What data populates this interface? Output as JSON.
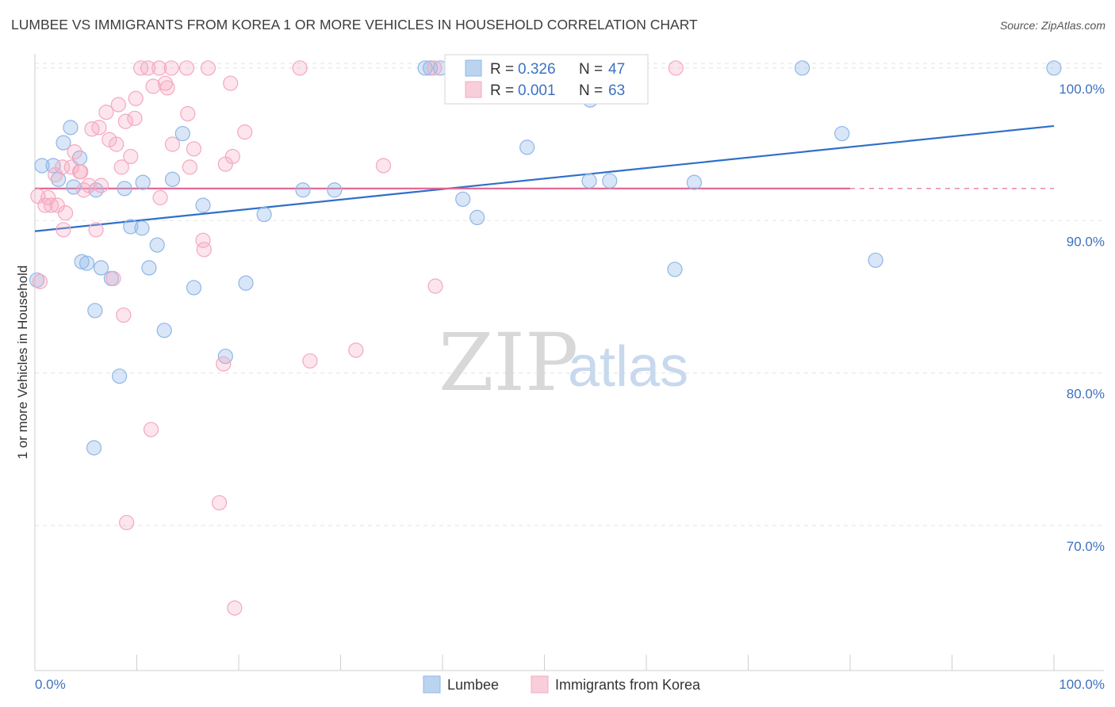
{
  "title": "LUMBEE VS IMMIGRANTS FROM KOREA 1 OR MORE VEHICLES IN HOUSEHOLD CORRELATION CHART",
  "source": "Source: ZipAtlas.com",
  "watermark": {
    "zip": "ZIP",
    "atlas": "atlas"
  },
  "legend_top": {
    "r_label": "R =",
    "n_label": "N =",
    "series": [
      {
        "r": "0.326",
        "n": "47"
      },
      {
        "r": "0.001",
        "n": "63"
      }
    ]
  },
  "chart_data": {
    "type": "scatter",
    "title": "LUMBEE VS IMMIGRANTS FROM KOREA 1 OR MORE VEHICLES IN HOUSEHOLD CORRELATION CHART",
    "xlabel": "",
    "ylabel": "1 or more Vehicles in Household",
    "xlim": [
      0,
      100
    ],
    "ylim": [
      60.5,
      101.6
    ],
    "x_tick_labels": [
      "0.0%",
      "100.0%"
    ],
    "y_ticks": [
      100,
      90,
      80,
      70
    ],
    "y_tick_labels": [
      "100.0%",
      "90.0%",
      "80.0%",
      "70.0%"
    ],
    "grid": true,
    "legend": "bottom-center",
    "series": [
      {
        "name": "Lumbee",
        "color": "#8fb7e8",
        "line_color": "#2f6fc9",
        "r": 0.326,
        "n": 47,
        "trend": {
          "x": [
            0,
            100
          ],
          "y": [
            89.3,
            96.2
          ]
        },
        "points": [
          [
            0.2,
            86.1
          ],
          [
            0.7,
            93.6
          ],
          [
            1.8,
            93.6
          ],
          [
            2.3,
            92.7
          ],
          [
            2.8,
            95.1
          ],
          [
            3.5,
            96.1
          ],
          [
            3.8,
            92.2
          ],
          [
            4.4,
            94.1
          ],
          [
            4.6,
            87.3
          ],
          [
            5.1,
            87.2
          ],
          [
            5.9,
            84.1
          ],
          [
            6.5,
            86.9
          ],
          [
            7.5,
            86.2
          ],
          [
            6.0,
            92.0
          ],
          [
            8.3,
            79.8
          ],
          [
            8.8,
            92.1
          ],
          [
            9.4,
            89.6
          ],
          [
            10.5,
            89.5
          ],
          [
            10.6,
            92.5
          ],
          [
            11.2,
            86.9
          ],
          [
            12.0,
            88.4
          ],
          [
            12.7,
            82.8
          ],
          [
            13.5,
            92.7
          ],
          [
            14.5,
            95.7
          ],
          [
            15.6,
            85.6
          ],
          [
            16.5,
            91.0
          ],
          [
            18.7,
            81.1
          ],
          [
            20.7,
            85.9
          ],
          [
            22.5,
            90.4
          ],
          [
            26.3,
            92.0
          ],
          [
            29.4,
            92.0
          ],
          [
            38.3,
            100.0
          ],
          [
            38.8,
            100.0
          ],
          [
            39.8,
            100.0
          ],
          [
            42.0,
            91.4
          ],
          [
            43.4,
            90.2
          ],
          [
            48.3,
            94.8
          ],
          [
            54.4,
            92.6
          ],
          [
            54.5,
            97.9
          ],
          [
            56.4,
            92.6
          ],
          [
            62.8,
            86.8
          ],
          [
            64.7,
            92.5
          ],
          [
            75.3,
            100.0
          ],
          [
            79.2,
            95.7
          ],
          [
            82.5,
            87.4
          ],
          [
            100.0,
            100.0
          ],
          [
            5.8,
            75.1
          ]
        ]
      },
      {
        "name": "Immigrants from Korea",
        "color": "#f4a8c0",
        "line_color": "#e2628f",
        "r": 0.001,
        "n": 63,
        "trend": {
          "x": [
            0,
            80
          ],
          "y": [
            92.1,
            92.1
          ]
        },
        "points": [
          [
            0.3,
            91.6
          ],
          [
            0.5,
            86.0
          ],
          [
            1.0,
            91.0
          ],
          [
            1.3,
            91.5
          ],
          [
            1.6,
            91.0
          ],
          [
            2.0,
            93.0
          ],
          [
            2.2,
            91.0
          ],
          [
            2.7,
            93.5
          ],
          [
            2.8,
            89.4
          ],
          [
            3.0,
            90.5
          ],
          [
            3.6,
            93.5
          ],
          [
            3.9,
            94.5
          ],
          [
            4.4,
            93.2
          ],
          [
            4.5,
            93.2
          ],
          [
            4.8,
            92.0
          ],
          [
            5.3,
            92.3
          ],
          [
            5.6,
            96.0
          ],
          [
            6.0,
            89.4
          ],
          [
            6.3,
            96.1
          ],
          [
            6.5,
            92.3
          ],
          [
            7.0,
            97.1
          ],
          [
            7.3,
            95.3
          ],
          [
            7.7,
            86.2
          ],
          [
            8.0,
            95.0
          ],
          [
            8.2,
            97.6
          ],
          [
            8.5,
            93.5
          ],
          [
            8.7,
            83.8
          ],
          [
            8.9,
            96.5
          ],
          [
            9.0,
            70.2
          ],
          [
            9.4,
            94.2
          ],
          [
            9.8,
            96.7
          ],
          [
            9.9,
            98.0
          ],
          [
            10.4,
            100.0
          ],
          [
            11.1,
            100.0
          ],
          [
            11.4,
            76.3
          ],
          [
            11.6,
            98.8
          ],
          [
            12.2,
            100.0
          ],
          [
            12.3,
            91.5
          ],
          [
            12.8,
            99.0
          ],
          [
            13.0,
            98.7
          ],
          [
            13.4,
            100.0
          ],
          [
            13.5,
            95.0
          ],
          [
            14.9,
            100.0
          ],
          [
            15.0,
            97.0
          ],
          [
            15.2,
            93.5
          ],
          [
            15.6,
            94.7
          ],
          [
            16.5,
            88.7
          ],
          [
            16.6,
            88.1
          ],
          [
            17.0,
            100.0
          ],
          [
            18.1,
            71.5
          ],
          [
            18.5,
            80.6
          ],
          [
            18.7,
            93.7
          ],
          [
            19.2,
            99.0
          ],
          [
            19.4,
            94.2
          ],
          [
            19.6,
            64.6
          ],
          [
            20.6,
            95.8
          ],
          [
            26.0,
            100.0
          ],
          [
            27.0,
            80.8
          ],
          [
            31.5,
            81.5
          ],
          [
            34.2,
            93.6
          ],
          [
            39.2,
            100.0
          ],
          [
            39.3,
            85.7
          ],
          [
            62.9,
            100.0
          ]
        ]
      }
    ]
  }
}
